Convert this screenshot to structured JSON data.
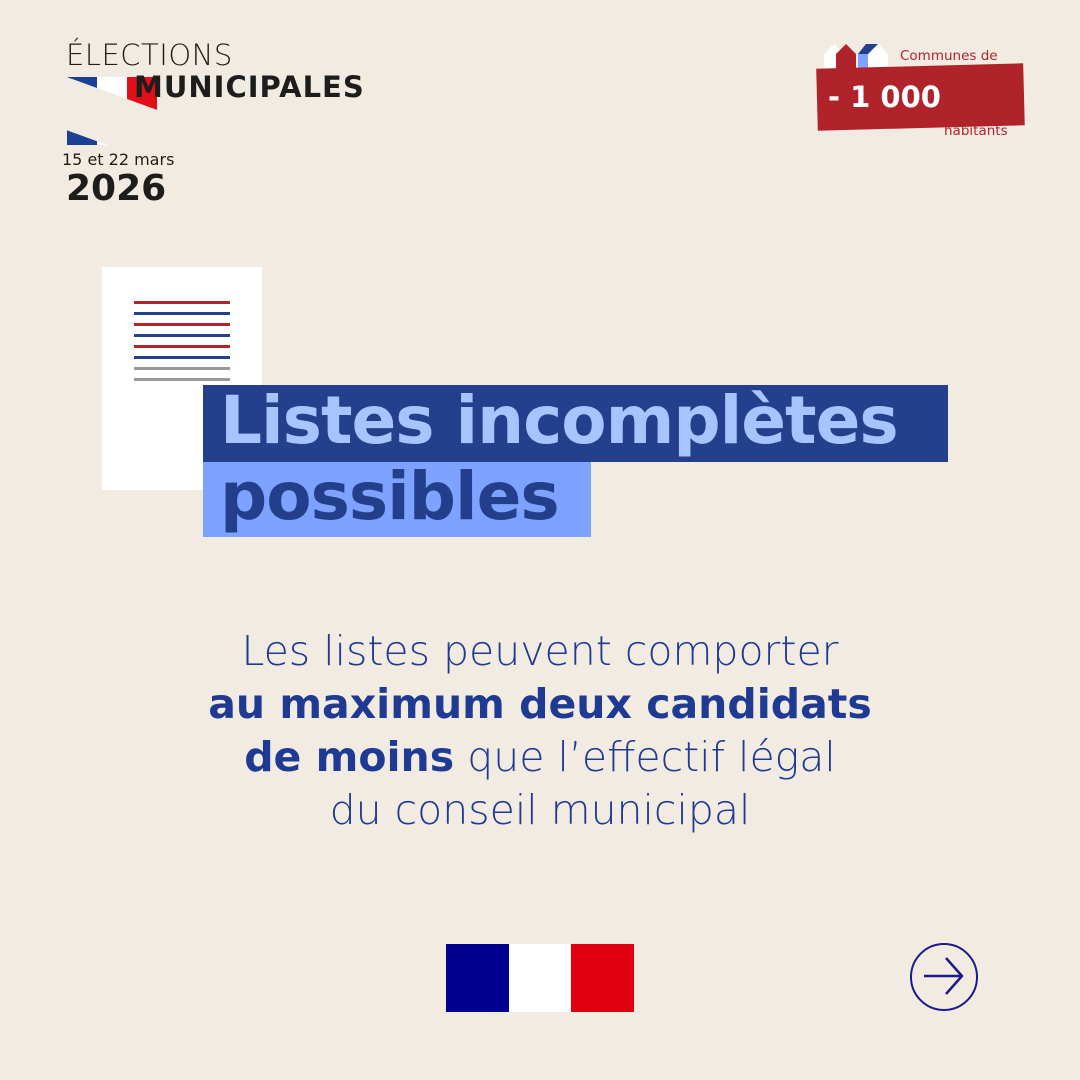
{
  "header": {
    "line1": "ÉLECTIONS",
    "line2": "MUNICIPALES",
    "dates": "15 et 22 mars",
    "year": "2026"
  },
  "badge": {
    "top": "Communes de",
    "number": "- 1 000",
    "bottom": "habitants"
  },
  "title": {
    "line1": "Listes incomplètes",
    "line2": "possibles"
  },
  "body": {
    "part1": "Les listes peuvent comporter",
    "bold1": "au maximum deux candidats",
    "bold2": "de moins",
    "part2": " que l’effectif légal",
    "part3": "du conseil municipal"
  },
  "colors": {
    "background": "#f2ebe2",
    "dark_blue": "#243f8b",
    "light_blue": "#7ea2ff",
    "red": "#b0232a",
    "flag_blue": "#000091",
    "flag_red": "#e1000f"
  },
  "footer": {
    "logo": "marianne-logo",
    "next": "arrow-right-icon"
  }
}
